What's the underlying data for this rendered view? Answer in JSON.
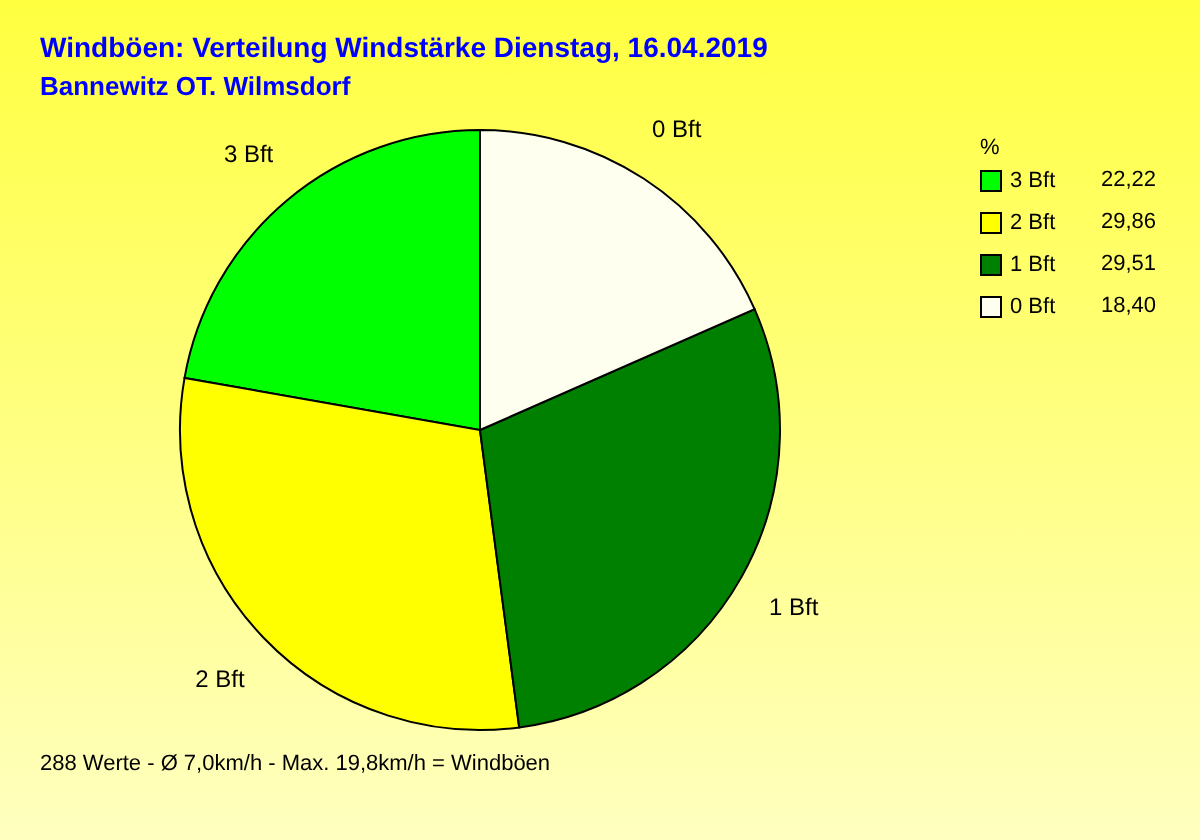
{
  "chart_data": {
    "type": "pie",
    "title": "Windböen: Verteilung Windstärke  Dienstag, 16.04.2019",
    "subtitle": "Bannewitz OT. Wilmsdorf",
    "legend_title": "%",
    "categories": [
      "3 Bft",
      "2 Bft",
      "1 Bft",
      "0 Bft"
    ],
    "values": [
      22.22,
      29.86,
      29.51,
      18.4
    ],
    "value_labels": [
      "22,22",
      "29,86",
      "29,51",
      "18,40"
    ],
    "colors": [
      "#00ff00",
      "#ffff00",
      "#008000",
      "#fffff0"
    ],
    "legend": "top right",
    "annotations": [
      "288 Werte   -   Ø 7,0km/h   -   Max. 19,8km/h = Windböen"
    ]
  }
}
